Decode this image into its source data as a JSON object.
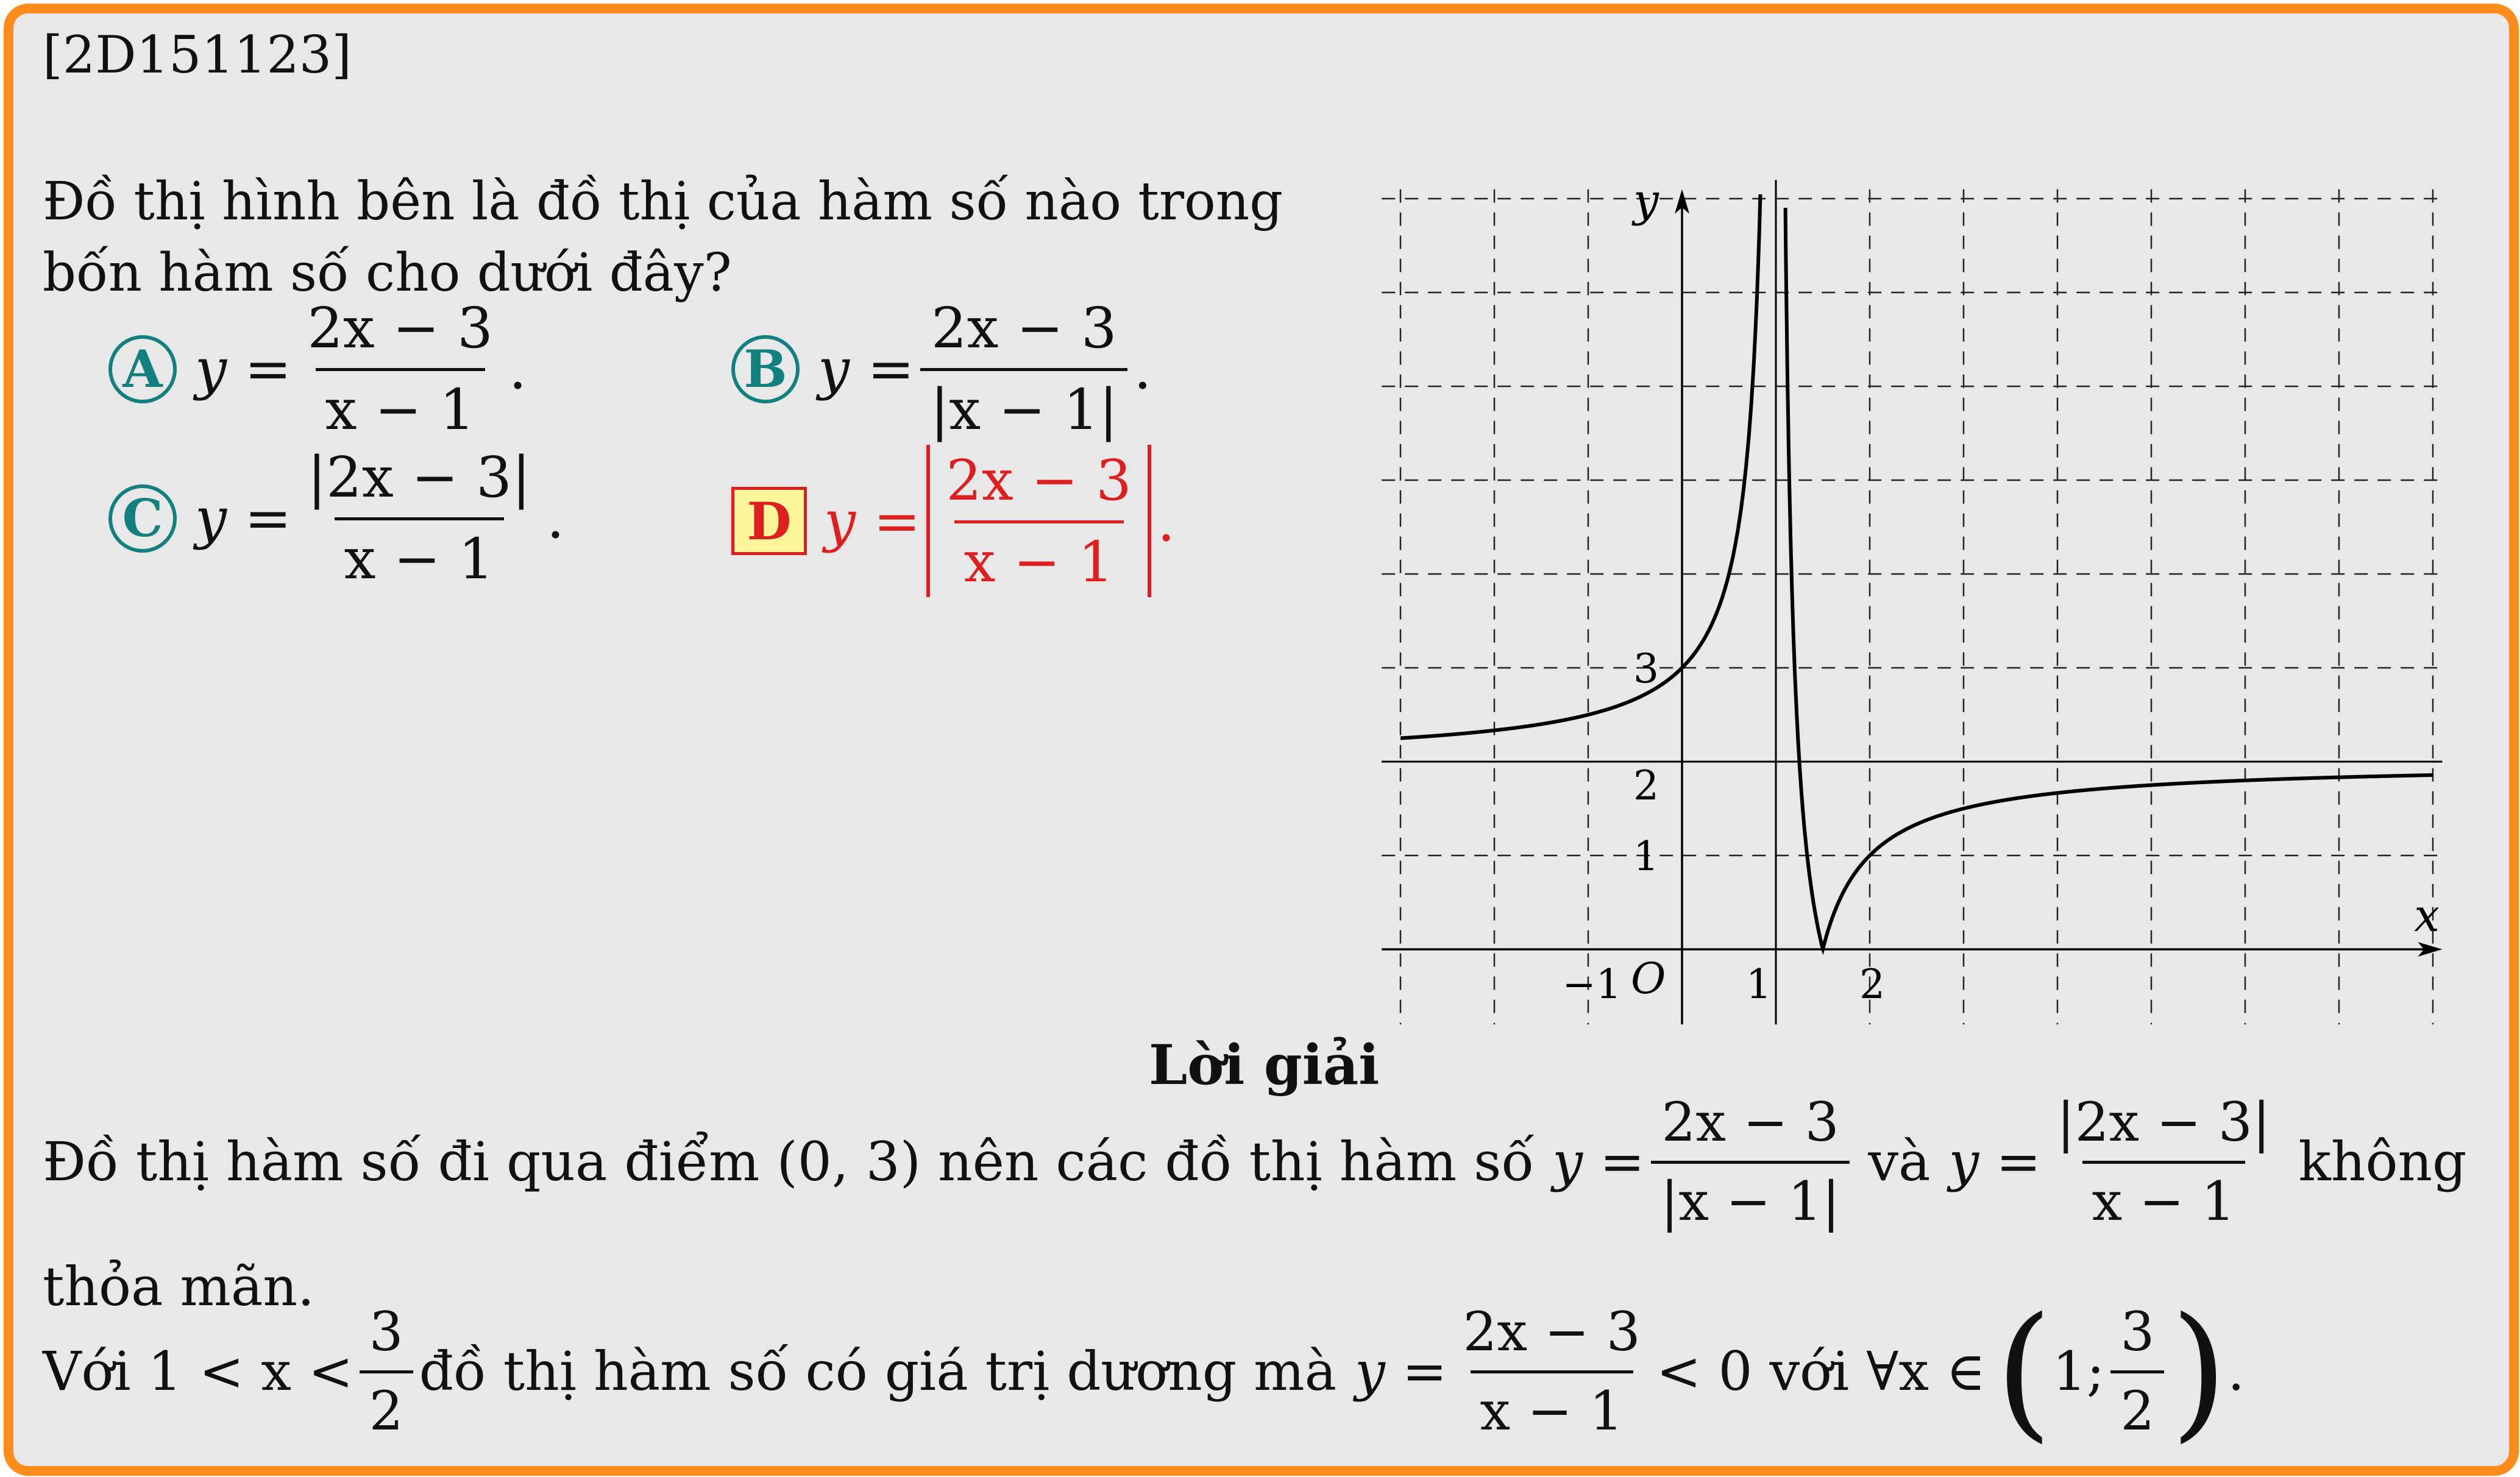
{
  "id_tag": "[2D151123]",
  "question": {
    "line1": "Đồ thị hình bên là đồ thị của hàm số nào trong",
    "line2": "bốn hàm số cho dưới đây?"
  },
  "options": [
    {
      "label": "A",
      "prefix": "y =",
      "num": "2x − 3",
      "den": "x − 1",
      "suffix": "."
    },
    {
      "label": "B",
      "prefix": "y =",
      "num": "2x − 3",
      "den": "|x − 1|",
      "suffix": "."
    },
    {
      "label": "C",
      "prefix": "y =",
      "num": "|2x − 3|",
      "den": "x − 1",
      "suffix": "."
    },
    {
      "label": "D",
      "prefix": "y =",
      "num": "2x − 3",
      "den": "x − 1",
      "suffix": ".",
      "correct": true
    }
  ],
  "graph": {
    "y_label": "y",
    "x_label": "x",
    "origin_label": "O",
    "tick_labels": {
      "y3": "3",
      "y2": "2",
      "y1": "1",
      "xm1": "−1",
      "x1": "1",
      "x2": "2"
    },
    "function": "y = |(2x − 3)/(x − 1)|",
    "x_range": [
      -3,
      8
    ],
    "y_range": [
      -0.8,
      8.2
    ],
    "grid": true
  },
  "solution": {
    "title": "Lời giải",
    "p1_a": "Đồ thị hàm số đi qua điểm (0, 3) nên các đồ thị hàm số",
    "p1_f1_prefix": "y =",
    "p1_f1_num": "2x − 3",
    "p1_f1_den": "|x − 1|",
    "p1_mid": "và",
    "p1_f2_prefix": "y =",
    "p1_f2_num": "|2x − 3|",
    "p1_f2_den": "x − 1",
    "p1_end": "không",
    "p1_line2": "thỏa mãn.",
    "p2_a": "Với 1 < x <",
    "p2_frac1_num": "3",
    "p2_frac1_den": "2",
    "p2_b": "đồ thị hàm số có giá trị dương mà",
    "p2_f_prefix": "y =",
    "p2_f_num": "2x − 3",
    "p2_f_den": "x − 1",
    "p2_c": "< 0 với ∀x ∈",
    "p2_int_left": "1;",
    "p2_int_num": "3",
    "p2_int_den": "2",
    "p2_end": "."
  },
  "colors": {
    "border": "#ff8c1a",
    "teal": "#138080",
    "red": "#dd1f1f",
    "highlight": "#fff59a"
  }
}
